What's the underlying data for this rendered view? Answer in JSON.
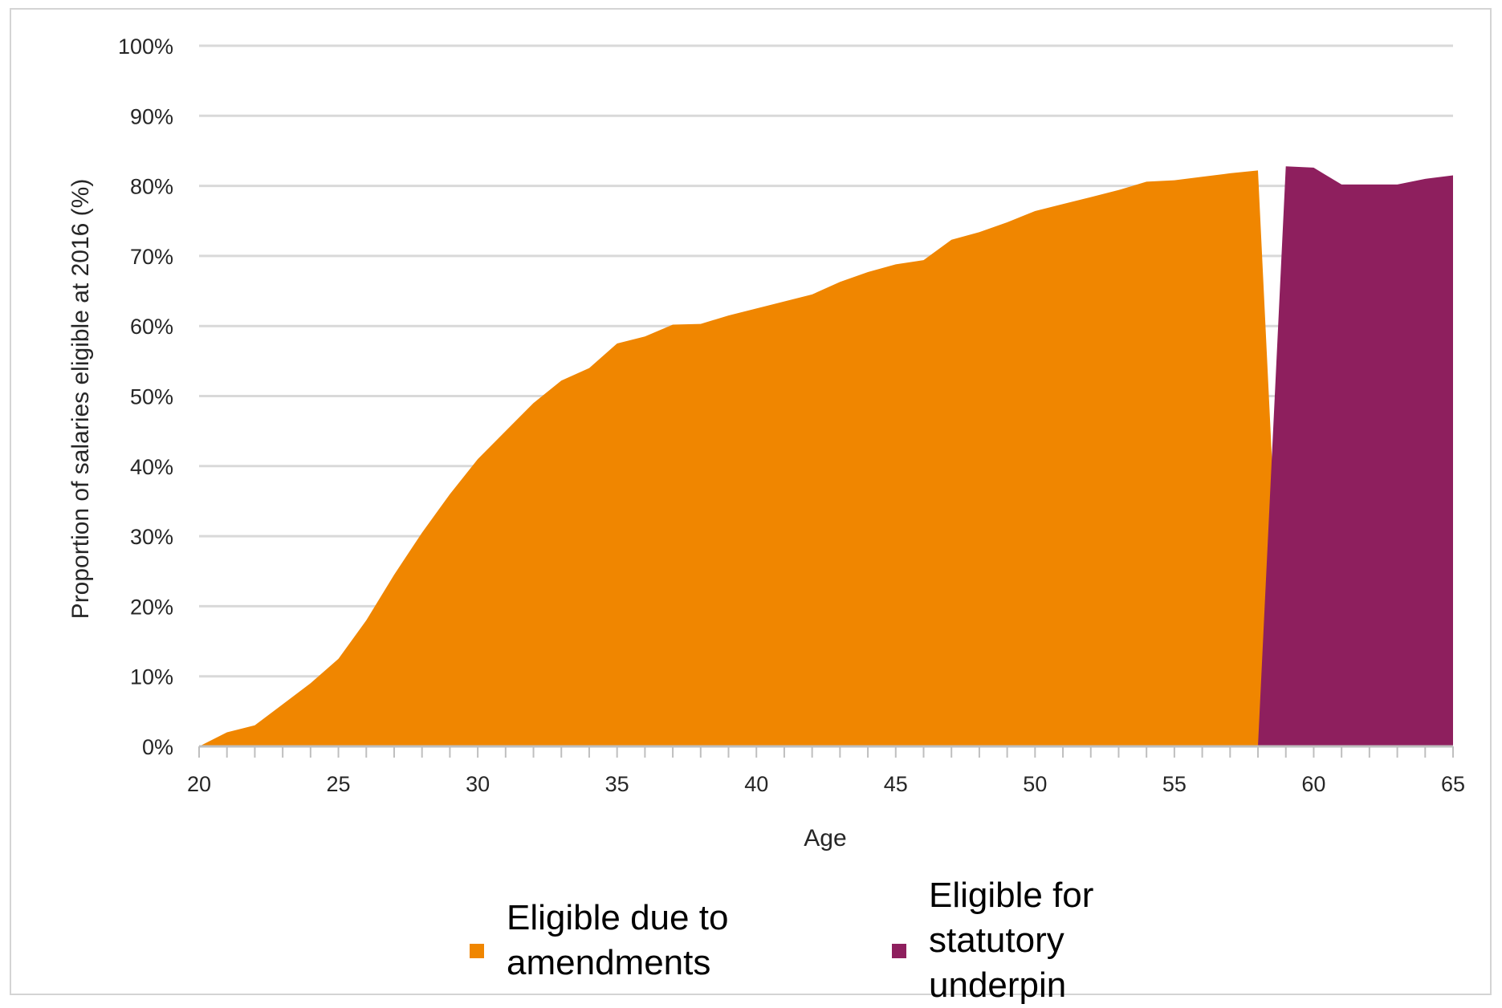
{
  "chart_data": {
    "type": "area",
    "xlabel": "Age",
    "ylabel": "Proportion of salaries eligible at 2016 (%)",
    "xlim": [
      20,
      65
    ],
    "ylim": [
      0,
      100
    ],
    "x_ticks": [
      "20",
      "25",
      "30",
      "35",
      "40",
      "45",
      "50",
      "55",
      "60",
      "65"
    ],
    "y_ticks": [
      "0%",
      "10%",
      "20%",
      "30%",
      "40%",
      "50%",
      "60%",
      "70%",
      "80%",
      "90%",
      "100%"
    ],
    "grid": true,
    "legend_position": "bottom",
    "series": [
      {
        "name": "Eligible due to amendments",
        "color": "#F08600",
        "x": [
          20,
          21,
          22,
          23,
          24,
          25,
          26,
          27,
          28,
          29,
          30,
          31,
          32,
          33,
          34,
          35,
          36,
          37,
          38,
          39,
          40,
          41,
          42,
          43,
          44,
          45,
          46,
          47,
          48,
          49,
          50,
          51,
          52,
          53,
          54,
          55,
          56,
          57,
          58,
          59
        ],
        "values": [
          0,
          2,
          3,
          6,
          9,
          12.5,
          18,
          24.5,
          30.5,
          36,
          41,
          45,
          49,
          52.2,
          54,
          57.5,
          58.5,
          60.2,
          60.3,
          61.5,
          62.5,
          63.5,
          64.5,
          66.3,
          67.7,
          68.8,
          69.4,
          72.3,
          73.4,
          74.8,
          76.4,
          77.4,
          78.4,
          79.4,
          80.6,
          80.8,
          81.3,
          81.8,
          82.2,
          0
        ]
      },
      {
        "name": "Eligible for statutory underpin",
        "color": "#8E1F5E",
        "x": [
          58,
          59,
          60,
          61,
          62,
          63,
          64,
          65
        ],
        "values": [
          0,
          82.8,
          82.6,
          80.2,
          80.2,
          80.2,
          81,
          81.5
        ]
      }
    ]
  },
  "legend": {
    "items": [
      {
        "label": "Eligible due to amendments",
        "color": "#F08600"
      },
      {
        "label": "Eligible for statutory underpin",
        "color": "#8E1F5E"
      }
    ]
  }
}
